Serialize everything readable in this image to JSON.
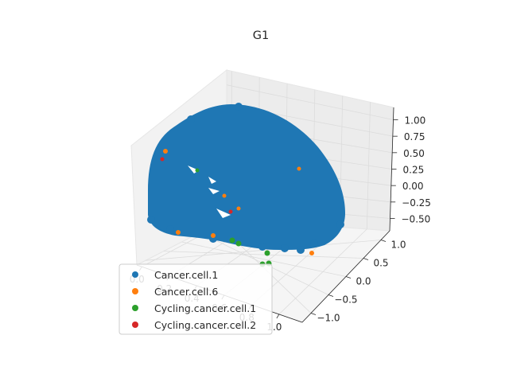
{
  "chart_data": {
    "type": "scatter",
    "title": "G1",
    "xlabel": "",
    "ylabel": "",
    "zlabel": "",
    "projection": "3d",
    "grid": true,
    "legend_position": "lower-left",
    "x_ticks": [
      "0.0",
      "0.2",
      "0.4",
      "0.6",
      "0.8",
      "1.0"
    ],
    "y_ticks": [
      "−1.0",
      "−0.5",
      "0.0",
      "0.5",
      "1.0"
    ],
    "z_ticks": [
      "−0.50",
      "−0.25",
      "0.00",
      "0.25",
      "0.50",
      "0.75",
      "1.00"
    ],
    "xlim": [
      0,
      1.05
    ],
    "ylim": [
      -1.1,
      1.1
    ],
    "zlim": [
      -0.6,
      1.1
    ],
    "series": [
      {
        "name": "Cancer.cell.1",
        "color": "#1f77b4"
      },
      {
        "name": "Cancer.cell.6",
        "color": "#ff7f0e"
      },
      {
        "name": "Cycling.cancer.cell.1",
        "color": "#2ca02c"
      },
      {
        "name": "Cycling.cancer.cell.2",
        "color": "#d62728"
      }
    ]
  }
}
